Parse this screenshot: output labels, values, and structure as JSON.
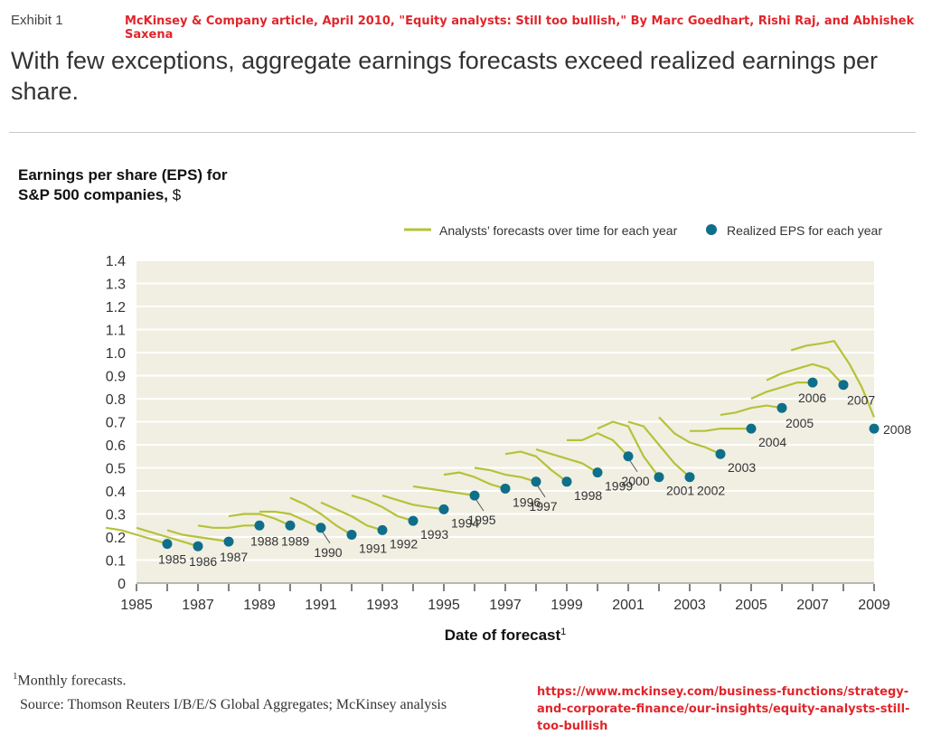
{
  "header": {
    "exhibit": "Exhibit 1",
    "citation": "McKinsey & Company article, April 2010, \"Equity analysts: Still too bullish,\" By Marc Goedhart, Rishi Raj, and Abhishek Saxena",
    "headline": "With few exceptions, aggregate earnings forecasts exceed realized earnings per share."
  },
  "chart_title": {
    "line1": "Earnings per share (EPS) for",
    "line2_bold": "S&P 500 companies,",
    "line2_unit": " $"
  },
  "footer": {
    "note_marker": "1",
    "note": "Monthly forecasts.",
    "source": "Source: Thomson Reuters I/B/E/S Global Aggregates; McKinsey analysis",
    "url": "https://www.mckinsey.com/business-functions/strategy-and-corporate-finance/our-insights/equity-analysts-still-too-bullish"
  },
  "colors": {
    "forecast_line": "#b5c23a",
    "realized_dot": "#0e6f8a",
    "plot_bg": "#f1efe2",
    "grid": "#ffffff",
    "accent_red": "#e0262b"
  },
  "chart_data": {
    "type": "line",
    "xlabel": "Date of forecast",
    "xlabel_sup": "1",
    "ylabel": "",
    "xlim": [
      1985,
      2009
    ],
    "ylim": [
      0,
      1.4
    ],
    "x_ticks": [
      "1985",
      "1987",
      "1989",
      "1991",
      "1993",
      "1995",
      "1997",
      "1999",
      "2001",
      "2003",
      "2005",
      "2007",
      "2009"
    ],
    "y_ticks": [
      "0",
      "0.1",
      "0.2",
      "0.3",
      "0.4",
      "0.5",
      "0.6",
      "0.7",
      "0.8",
      "0.9",
      "1.0",
      "1.1",
      "1.2",
      "1.3",
      "1.4"
    ],
    "grid": true,
    "legend_position": "top-right",
    "legend": [
      {
        "label": "Analysts’ forecasts over time for each year",
        "marker": "line"
      },
      {
        "label": "Realized EPS for each year",
        "marker": "dot"
      }
    ],
    "realized": [
      {
        "year": "1985",
        "x": 1986.0,
        "y": 0.17
      },
      {
        "year": "1986",
        "x": 1987.0,
        "y": 0.16
      },
      {
        "year": "1987",
        "x": 1988.0,
        "y": 0.18
      },
      {
        "year": "1988",
        "x": 1989.0,
        "y": 0.25
      },
      {
        "year": "1989",
        "x": 1990.0,
        "y": 0.25
      },
      {
        "year": "1990",
        "x": 1991.0,
        "y": 0.24
      },
      {
        "year": "1991",
        "x": 1992.0,
        "y": 0.21
      },
      {
        "year": "1992",
        "x": 1993.0,
        "y": 0.23
      },
      {
        "year": "1993",
        "x": 1994.0,
        "y": 0.27
      },
      {
        "year": "1994",
        "x": 1995.0,
        "y": 0.32
      },
      {
        "year": "1995",
        "x": 1996.0,
        "y": 0.38
      },
      {
        "year": "1996",
        "x": 1997.0,
        "y": 0.41
      },
      {
        "year": "1997",
        "x": 1998.0,
        "y": 0.44
      },
      {
        "year": "1998",
        "x": 1999.0,
        "y": 0.44
      },
      {
        "year": "1999",
        "x": 2000.0,
        "y": 0.48
      },
      {
        "year": "2000",
        "x": 2001.0,
        "y": 0.55
      },
      {
        "year": "2001",
        "x": 2002.0,
        "y": 0.46
      },
      {
        "year": "2002",
        "x": 2003.0,
        "y": 0.46
      },
      {
        "year": "2003",
        "x": 2004.0,
        "y": 0.56
      },
      {
        "year": "2004",
        "x": 2005.0,
        "y": 0.67
      },
      {
        "year": "2005",
        "x": 2006.0,
        "y": 0.76
      },
      {
        "year": "2006",
        "x": 2007.0,
        "y": 0.87
      },
      {
        "year": "2007",
        "x": 2008.0,
        "y": 0.86
      },
      {
        "year": "2008",
        "x": 2009.0,
        "y": 0.67
      }
    ],
    "forecasts": [
      {
        "year": "1985",
        "points": [
          [
            1984.0,
            0.24
          ],
          [
            1984.5,
            0.23
          ],
          [
            1985.0,
            0.21
          ],
          [
            1985.5,
            0.19
          ],
          [
            1986.0,
            0.17
          ]
        ]
      },
      {
        "year": "1986",
        "points": [
          [
            1985.0,
            0.24
          ],
          [
            1985.5,
            0.22
          ],
          [
            1986.0,
            0.2
          ],
          [
            1986.5,
            0.18
          ],
          [
            1987.0,
            0.16
          ]
        ]
      },
      {
        "year": "1987",
        "points": [
          [
            1986.0,
            0.23
          ],
          [
            1986.5,
            0.21
          ],
          [
            1987.0,
            0.2
          ],
          [
            1987.5,
            0.19
          ],
          [
            1988.0,
            0.18
          ]
        ]
      },
      {
        "year": "1988",
        "points": [
          [
            1987.0,
            0.25
          ],
          [
            1987.5,
            0.24
          ],
          [
            1988.0,
            0.24
          ],
          [
            1988.5,
            0.25
          ],
          [
            1989.0,
            0.25
          ]
        ]
      },
      {
        "year": "1989",
        "points": [
          [
            1988.0,
            0.29
          ],
          [
            1988.5,
            0.3
          ],
          [
            1989.0,
            0.3
          ],
          [
            1989.5,
            0.28
          ],
          [
            1990.0,
            0.25
          ]
        ]
      },
      {
        "year": "1990",
        "points": [
          [
            1989.0,
            0.31
          ],
          [
            1989.5,
            0.31
          ],
          [
            1990.0,
            0.3
          ],
          [
            1990.5,
            0.27
          ],
          [
            1991.0,
            0.24
          ]
        ]
      },
      {
        "year": "1991",
        "points": [
          [
            1990.0,
            0.37
          ],
          [
            1990.5,
            0.34
          ],
          [
            1991.0,
            0.3
          ],
          [
            1991.5,
            0.25
          ],
          [
            1992.0,
            0.21
          ]
        ]
      },
      {
        "year": "1992",
        "points": [
          [
            1991.0,
            0.35
          ],
          [
            1991.5,
            0.32
          ],
          [
            1992.0,
            0.29
          ],
          [
            1992.5,
            0.25
          ],
          [
            1993.0,
            0.23
          ]
        ]
      },
      {
        "year": "1993",
        "points": [
          [
            1992.0,
            0.38
          ],
          [
            1992.5,
            0.36
          ],
          [
            1993.0,
            0.33
          ],
          [
            1993.5,
            0.29
          ],
          [
            1994.0,
            0.27
          ]
        ]
      },
      {
        "year": "1994",
        "points": [
          [
            1993.0,
            0.38
          ],
          [
            1993.5,
            0.36
          ],
          [
            1994.0,
            0.34
          ],
          [
            1994.5,
            0.33
          ],
          [
            1995.0,
            0.32
          ]
        ]
      },
      {
        "year": "1995",
        "points": [
          [
            1994.0,
            0.42
          ],
          [
            1994.5,
            0.41
          ],
          [
            1995.0,
            0.4
          ],
          [
            1995.5,
            0.39
          ],
          [
            1996.0,
            0.38
          ]
        ]
      },
      {
        "year": "1996",
        "points": [
          [
            1995.0,
            0.47
          ],
          [
            1995.5,
            0.48
          ],
          [
            1996.0,
            0.46
          ],
          [
            1996.5,
            0.43
          ],
          [
            1997.0,
            0.41
          ]
        ]
      },
      {
        "year": "1997",
        "points": [
          [
            1996.0,
            0.5
          ],
          [
            1996.5,
            0.49
          ],
          [
            1997.0,
            0.47
          ],
          [
            1997.5,
            0.46
          ],
          [
            1998.0,
            0.44
          ]
        ]
      },
      {
        "year": "1998",
        "points": [
          [
            1997.0,
            0.56
          ],
          [
            1997.5,
            0.57
          ],
          [
            1998.0,
            0.55
          ],
          [
            1998.5,
            0.49
          ],
          [
            1999.0,
            0.44
          ]
        ]
      },
      {
        "year": "1999",
        "points": [
          [
            1998.0,
            0.58
          ],
          [
            1998.5,
            0.56
          ],
          [
            1999.0,
            0.54
          ],
          [
            1999.5,
            0.52
          ],
          [
            2000.0,
            0.48
          ]
        ]
      },
      {
        "year": "2000",
        "points": [
          [
            1999.0,
            0.62
          ],
          [
            1999.5,
            0.62
          ],
          [
            2000.0,
            0.65
          ],
          [
            2000.5,
            0.62
          ],
          [
            2001.0,
            0.55
          ]
        ]
      },
      {
        "year": "2001",
        "points": [
          [
            2000.0,
            0.67
          ],
          [
            2000.5,
            0.7
          ],
          [
            2001.0,
            0.68
          ],
          [
            2001.5,
            0.55
          ],
          [
            2002.0,
            0.46
          ]
        ]
      },
      {
        "year": "2002",
        "points": [
          [
            2001.0,
            0.7
          ],
          [
            2001.5,
            0.68
          ],
          [
            2002.0,
            0.6
          ],
          [
            2002.5,
            0.52
          ],
          [
            2003.0,
            0.46
          ]
        ]
      },
      {
        "year": "2003",
        "points": [
          [
            2002.0,
            0.72
          ],
          [
            2002.5,
            0.65
          ],
          [
            2003.0,
            0.61
          ],
          [
            2003.5,
            0.59
          ],
          [
            2004.0,
            0.56
          ]
        ]
      },
      {
        "year": "2004",
        "points": [
          [
            2003.0,
            0.66
          ],
          [
            2003.5,
            0.66
          ],
          [
            2004.0,
            0.67
          ],
          [
            2004.5,
            0.67
          ],
          [
            2005.0,
            0.67
          ]
        ]
      },
      {
        "year": "2005",
        "points": [
          [
            2004.0,
            0.73
          ],
          [
            2004.5,
            0.74
          ],
          [
            2005.0,
            0.76
          ],
          [
            2005.5,
            0.77
          ],
          [
            2006.0,
            0.76
          ]
        ]
      },
      {
        "year": "2006",
        "points": [
          [
            2005.0,
            0.8
          ],
          [
            2005.5,
            0.83
          ],
          [
            2006.0,
            0.85
          ],
          [
            2006.5,
            0.87
          ],
          [
            2007.0,
            0.87
          ]
        ]
      },
      {
        "year": "2007",
        "points": [
          [
            2005.5,
            0.88
          ],
          [
            2006.0,
            0.91
          ],
          [
            2006.5,
            0.93
          ],
          [
            2007.0,
            0.95
          ],
          [
            2007.5,
            0.93
          ],
          [
            2008.0,
            0.86
          ]
        ]
      },
      {
        "year": "2008",
        "points": [
          [
            2006.3,
            1.01
          ],
          [
            2006.8,
            1.03
          ],
          [
            2007.3,
            1.04
          ],
          [
            2007.7,
            1.05
          ],
          [
            2008.2,
            0.95
          ],
          [
            2008.6,
            0.85
          ],
          [
            2009.0,
            0.72
          ]
        ]
      }
    ]
  }
}
